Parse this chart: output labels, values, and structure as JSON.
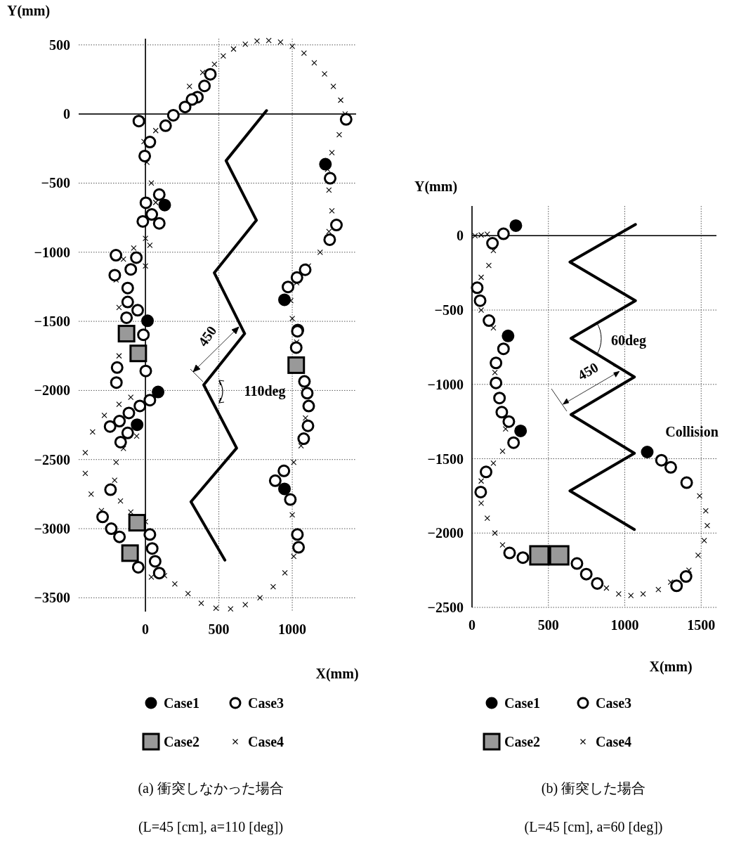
{
  "chart_data": [
    {
      "type": "scatter",
      "title": "(a) 衝突しなかった場合",
      "subtitle": "(L=45 [cm], a=110 [deg])",
      "xlabel": "X(mm)",
      "ylabel": "Y(mm)",
      "xlim": [
        -455,
        1435
      ],
      "ylim": [
        -3600,
        545
      ],
      "xticks": [
        0,
        500,
        1000
      ],
      "yticks": [
        500,
        0,
        -500,
        -1000,
        -1500,
        -2000,
        -2500,
        -3000,
        -3500
      ],
      "grid": true,
      "legend": "bottom",
      "annotations": [
        "450",
        "110deg"
      ],
      "series": [
        {
          "name": "Case1",
          "marker": "circle",
          "color": "#000000",
          "x": [
            1226,
            131,
            947,
            14,
            86,
            -57,
            947
          ],
          "values": [
            -363,
            -659,
            -1344,
            -1496,
            -2011,
            -2248,
            -2712
          ]
        },
        {
          "name": "Case2",
          "marker": "square",
          "color": "#999999",
          "x": [
            -129,
            -49,
            1027,
            -57,
            -105
          ],
          "values": [
            -1589,
            -1732,
            -1817,
            -2957,
            -3177
          ]
        },
        {
          "name": "Case3",
          "marker": "circle",
          "color": "#ffffff",
          "x": [
            442,
            402,
            354,
            317,
            270,
            190,
            137,
            -45,
            30,
            -5,
            94,
            3,
            43,
            -18,
            94,
            -201,
            -62,
            -209,
            -100,
            -121,
            -121,
            -53,
            -129,
            -14,
            2,
            -193,
            -198,
            30,
            -38,
            -113,
            -177,
            -241,
            -121,
            -169,
            -238,
            -292,
            -233,
            -177,
            -49,
            30,
            46,
            66,
            94,
            1367,
            1258,
            1301,
            1255,
            1088,
            1032,
            971,
            1038,
            1035,
            1027,
            1083,
            1102,
            1112,
            1107,
            1078,
            943,
            884,
            987,
            1035,
            1043
          ],
          "values": [
            287,
            203,
            122,
            105,
            51,
            -9,
            -85,
            -51,
            -203,
            -304,
            -583,
            -642,
            -727,
            -777,
            -791,
            -1022,
            -1039,
            -1166,
            -1124,
            -1259,
            -1360,
            -1420,
            -1474,
            -1597,
            -1859,
            -1834,
            -1943,
            -2070,
            -2112,
            -2163,
            -2222,
            -2261,
            -2307,
            -2374,
            -2718,
            -2915,
            -3000,
            -3059,
            -3279,
            -3042,
            -3143,
            -3236,
            -3321,
            -39,
            -465,
            -803,
            -909,
            -1127,
            -1183,
            -1251,
            -1563,
            -1572,
            -1690,
            -1935,
            -2020,
            -2113,
            -2256,
            -2349,
            -2582,
            -2653,
            -2789,
            -3042,
            -3135
          ]
        },
        {
          "name": "Case4",
          "marker": "cross",
          "color": "#000000",
          "x": [
            470,
            530,
            600,
            680,
            760,
            840,
            920,
            1000,
            1080,
            1150,
            1220,
            1280,
            1330,
            1360,
            1320,
            1270,
            1240,
            1250,
            1270,
            1250,
            1190,
            1110,
            1030,
            990,
            1000,
            1030,
            1080,
            1090,
            1060,
            1010,
            1000,
            1010,
            950,
            870,
            780,
            680,
            580,
            480,
            380,
            290,
            200,
            130,
            -300,
            -370,
            -410,
            -410,
            -360,
            -280,
            -180,
            -100,
            -60,
            -150,
            -200,
            -210,
            -170,
            -100,
            0,
            40,
            -20,
            -10,
            10,
            40,
            70,
            0,
            -80,
            -150,
            -200,
            -180,
            -180,
            30,
            0,
            70,
            300,
            390
          ],
          "values": [
            360,
            420,
            470,
            505,
            528,
            532,
            520,
            490,
            440,
            370,
            290,
            200,
            100,
            0,
            -150,
            -280,
            -400,
            -550,
            -700,
            -850,
            -1000,
            -1100,
            -1220,
            -1350,
            -1480,
            -1650,
            -2000,
            -2200,
            -2400,
            -2520,
            -2900,
            -3200,
            -3320,
            -3420,
            -3500,
            -3550,
            -3580,
            -3575,
            -3540,
            -3470,
            -3400,
            -3340,
            -2870,
            -2750,
            -2600,
            -2450,
            -2300,
            -2180,
            -2100,
            -2050,
            -2330,
            -2420,
            -2520,
            -2650,
            -2800,
            -2880,
            -2950,
            -3350,
            -50,
            -200,
            -350,
            -500,
            -640,
            -900,
            -970,
            -1050,
            -1200,
            -1400,
            -1750,
            -950,
            -1100,
            -120,
            200,
            300
          ]
        },
        {
          "type": "line",
          "color": "#000000",
          "x": [
            825,
            549,
            756,
            469,
            676,
            397,
            621,
            310,
            541
          ],
          "values": [
            25,
            -338,
            -769,
            -1149,
            -1589,
            -1960,
            -2417,
            -2805,
            -3228
          ]
        }
      ]
    },
    {
      "type": "scatter",
      "title": "(b) 衝突した場合",
      "subtitle": "(L=45 [cm], a=60 [deg])",
      "xlabel": "X(mm)",
      "ylabel": "Y(mm)",
      "xlim": [
        0,
        1600
      ],
      "ylim": [
        -2500,
        200
      ],
      "xticks": [
        0,
        500,
        1000,
        1500
      ],
      "yticks": [
        0,
        -500,
        -1000,
        -1500,
        -2000,
        -2500
      ],
      "grid": true,
      "legend": "bottom",
      "annotations": [
        "60deg",
        "450",
        "Collision"
      ],
      "series": [
        {
          "name": "Case1",
          "marker": "circle",
          "color": "#000000",
          "x": [
            287,
            236,
            318,
            1147
          ],
          "values": [
            68,
            -674,
            -1313,
            -1455
          ]
        },
        {
          "name": "Case2",
          "marker": "square",
          "color": "#999999",
          "x": [
            441,
            571
          ],
          "values": [
            -2150,
            -2150
          ]
        },
        {
          "name": "Case3",
          "marker": "circle",
          "color": "#ffffff",
          "x": [
            206,
            134,
            34,
            53,
            111,
            206,
            157,
            157,
            180,
            195,
            241,
            272,
            92,
            57,
            246,
            333,
            687,
            748,
            820,
            1240,
            1301,
            1405,
            1401,
            1339
          ],
          "values": [
            13,
            -51,
            -350,
            -437,
            -571,
            -761,
            -856,
            -990,
            -1092,
            -1187,
            -1250,
            -1392,
            -1589,
            -1724,
            -2134,
            -2165,
            -2205,
            -2276,
            -2339,
            -1510,
            -1558,
            -1661,
            -2292,
            -2355
          ]
        },
        {
          "name": "Case4",
          "marker": "cross",
          "color": "#000000",
          "x": [
            20,
            60,
            100,
            140,
            110,
            60,
            60,
            140,
            150,
            220,
            200,
            140,
            60,
            60,
            100,
            150,
            200,
            880,
            960,
            1040,
            1120,
            1220,
            1300,
            1420,
            1480,
            1520,
            1540,
            1530,
            1490
          ],
          "values": [
            0,
            5,
            10,
            -100,
            -200,
            -280,
            -500,
            -620,
            -920,
            -1300,
            -1450,
            -1530,
            -1650,
            -1800,
            -1900,
            -2000,
            -2080,
            -2370,
            -2410,
            -2420,
            -2410,
            -2380,
            -2330,
            -2250,
            -2150,
            -2050,
            -1950,
            -1850,
            -1750
          ]
        },
        {
          "type": "line",
          "color": "#000000",
          "x": [
            1070,
            641,
            1070,
            648,
            1063,
            648,
            1063,
            641,
            1063
          ],
          "values": [
            76,
            -177,
            -437,
            -690,
            -950,
            -1203,
            -1463,
            -1716,
            -1976
          ]
        }
      ]
    }
  ]
}
